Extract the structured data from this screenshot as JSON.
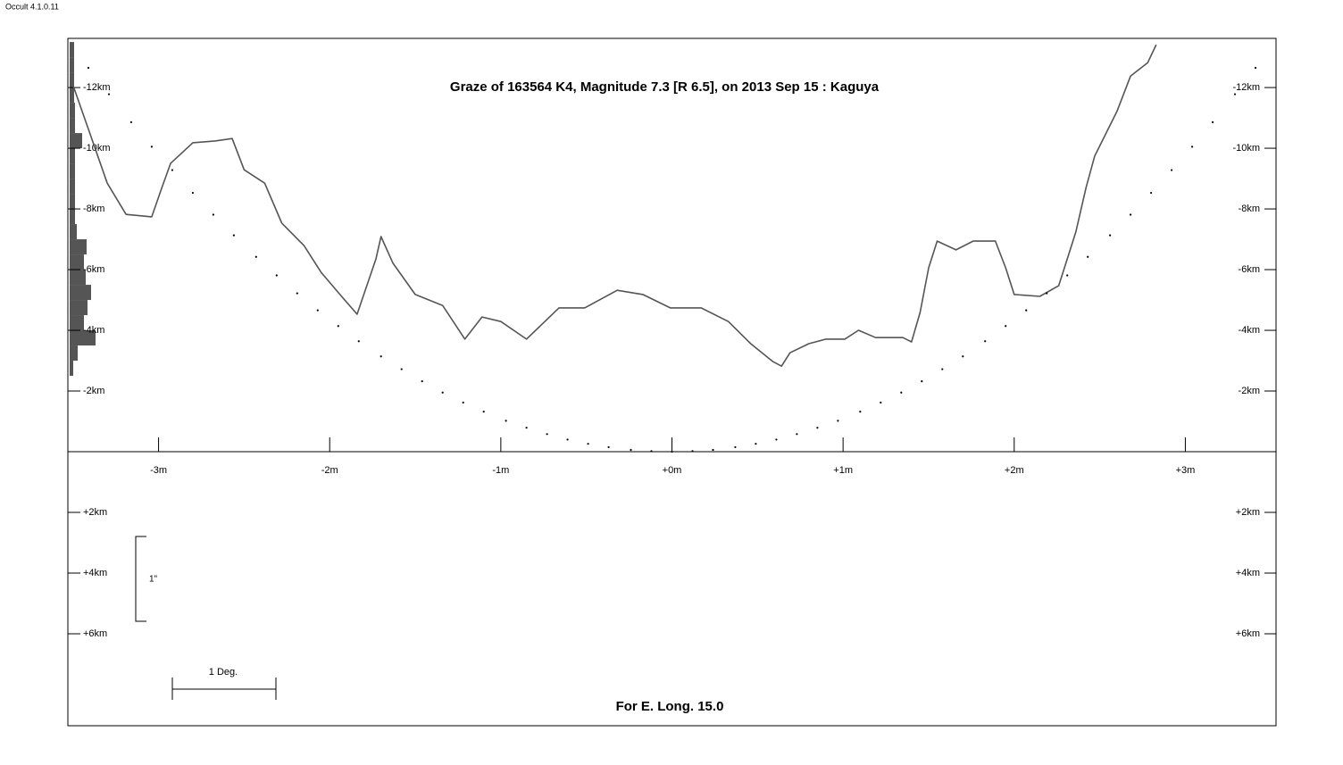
{
  "app_label": "Occult 4.1.0.11",
  "chart_data": {
    "type": "line",
    "title": "Graze of  163564 K4,  Magnitude 7.3 [R 6.5],  on 2013 Sep 15  :  Kaguya",
    "footer": "For E. Long. 15.0",
    "scale_bar_vertical_label": "1\"",
    "scale_bar_horizontal_label": "1 Deg.",
    "xlim": [
      -3.53,
      3.53
    ],
    "ylim": [
      -13.62,
      9.03
    ],
    "y_inverted": true,
    "xticks": [
      {
        "value": -3,
        "label": "-3m"
      },
      {
        "value": -2,
        "label": "-2m"
      },
      {
        "value": -1,
        "label": "-1m"
      },
      {
        "value": 0,
        "label": "+0m"
      },
      {
        "value": 1,
        "label": "+1m"
      },
      {
        "value": 2,
        "label": "+2m"
      },
      {
        "value": 3,
        "label": "+3m"
      }
    ],
    "yticks": [
      {
        "value": -12,
        "label": "-12km"
      },
      {
        "value": -10,
        "label": "-10km"
      },
      {
        "value": -8,
        "label": "-8km"
      },
      {
        "value": -6,
        "label": "-6km"
      },
      {
        "value": -4,
        "label": "-4km"
      },
      {
        "value": -2,
        "label": "-2km"
      },
      {
        "value": 2,
        "label": "+2km"
      },
      {
        "value": 4,
        "label": "+4km"
      },
      {
        "value": 6,
        "label": "+6km"
      }
    ],
    "series": [
      {
        "color": "#555555",
        "style": "line",
        "x": [
          -3.51,
          -3.4,
          -3.3,
          -3.19,
          -3.04,
          -2.98,
          -2.93,
          -2.8,
          -2.67,
          -2.57,
          -2.5,
          -2.38,
          -2.28,
          -2.15,
          -2.05,
          -1.94,
          -1.84,
          -1.73,
          -1.7,
          -1.63,
          -1.5,
          -1.34,
          -1.21,
          -1.11,
          -1.0,
          -0.85,
          -0.66,
          -0.51,
          -0.32,
          -0.17,
          -0.01,
          0.17,
          0.33,
          0.46,
          0.59,
          0.64,
          0.69,
          0.8,
          0.9,
          1.01,
          1.09,
          1.19,
          1.35,
          1.4,
          1.45,
          1.5,
          1.55,
          1.66,
          1.76,
          1.89,
          1.95,
          2.0,
          2.15,
          2.26,
          2.31,
          2.36,
          2.42,
          2.47,
          2.6,
          2.68,
          2.78,
          2.83
        ],
        "values": [
          -12.24,
          -10.47,
          -8.85,
          -7.82,
          -7.74,
          -8.71,
          -9.5,
          -10.18,
          -10.24,
          -10.32,
          -9.29,
          -8.85,
          -7.53,
          -6.79,
          -5.91,
          -5.18,
          -4.53,
          -6.35,
          -7.09,
          -6.21,
          -5.18,
          -4.82,
          -3.71,
          -4.44,
          -4.29,
          -3.71,
          -4.74,
          -4.74,
          -5.32,
          -5.18,
          -4.74,
          -4.74,
          -4.29,
          -3.56,
          -2.97,
          -2.82,
          -3.26,
          -3.56,
          -3.71,
          -3.71,
          -4.0,
          -3.76,
          -3.76,
          -3.62,
          -4.59,
          -6.06,
          -6.94,
          -6.65,
          -6.94,
          -6.94,
          -6.06,
          -5.18,
          -5.12,
          -5.47,
          -6.35,
          -7.24,
          -8.71,
          -9.74,
          -11.21,
          -12.38,
          -12.82,
          -13.41
        ]
      },
      {
        "color": "#000000",
        "style": "dots",
        "x": [
          -3.41,
          -3.29,
          -3.16,
          -3.04,
          -2.92,
          -2.8,
          -2.68,
          -2.56,
          -2.43,
          -2.31,
          -2.19,
          -2.07,
          -1.95,
          -1.83,
          -1.7,
          -1.58,
          -1.46,
          -1.34,
          -1.22,
          -1.1,
          -0.97,
          -0.85,
          -0.73,
          -0.61,
          -0.49,
          -0.37,
          -0.24,
          -0.12,
          0,
          0.12,
          0.24,
          0.37,
          0.49,
          0.61,
          0.73,
          0.85,
          0.97,
          1.1,
          1.22,
          1.34,
          1.46,
          1.58,
          1.7,
          1.83,
          1.95,
          2.07,
          2.19,
          2.31,
          2.43,
          2.56,
          2.68,
          2.8,
          2.92,
          3.04,
          3.16,
          3.29,
          3.41
        ],
        "values": [
          -12.65,
          -11.78,
          -10.86,
          -10.05,
          -9.28,
          -8.53,
          -7.81,
          -7.13,
          -6.42,
          -5.81,
          -5.22,
          -4.66,
          -4.14,
          -3.64,
          -3.14,
          -2.72,
          -2.32,
          -1.95,
          -1.62,
          -1.32,
          -1.02,
          -0.79,
          -0.58,
          -0.4,
          -0.26,
          -0.15,
          -0.06,
          -0.02,
          0,
          -0.02,
          -0.06,
          -0.15,
          -0.26,
          -0.4,
          -0.58,
          -0.79,
          -1.02,
          -1.32,
          -1.62,
          -1.95,
          -2.32,
          -2.72,
          -3.14,
          -3.64,
          -4.14,
          -4.66,
          -5.22,
          -5.81,
          -6.42,
          -7.13,
          -7.81,
          -8.53,
          -9.28,
          -10.05,
          -10.86,
          -11.78,
          -12.65
        ]
      }
    ],
    "side_histogram": {
      "color": "#555555",
      "xlim": [
        0,
        100
      ],
      "bins": [
        -13.5,
        -13,
        -12.5,
        -12,
        -11.5,
        -11,
        -10.5,
        -10,
        -9.5,
        -9,
        -8.5,
        -8,
        -7.5,
        -7,
        -6.5,
        -6,
        -5.5,
        -5,
        -4.5,
        -4,
        -3.5,
        -3,
        -2.5
      ],
      "values": [
        5,
        5,
        5,
        5,
        6,
        6,
        14,
        6,
        6,
        6,
        6,
        6,
        8,
        19,
        16,
        18,
        24,
        20,
        16,
        29,
        9,
        4
      ]
    }
  }
}
